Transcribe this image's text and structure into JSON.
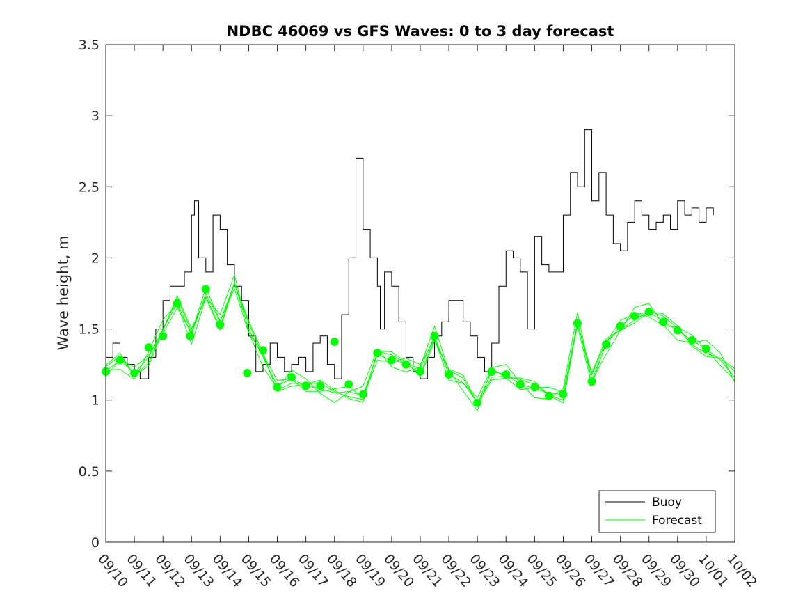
{
  "chart_data": {
    "type": "line",
    "title": "NDBC 46069 vs GFS Waves: 0 to 3 day forecast",
    "xlabel": "",
    "ylabel": "Wave height, m",
    "ylim": [
      0,
      3.5
    ],
    "xlim": [
      0,
      22
    ],
    "yticks": [
      "0",
      "0.5",
      "1",
      "1.5",
      "2",
      "2.5",
      "3",
      "3.5"
    ],
    "ytick_values": [
      0,
      0.5,
      1,
      1.5,
      2,
      2.5,
      3,
      3.5
    ],
    "xticks": [
      "09/10",
      "09/11",
      "09/12",
      "09/13",
      "09/14",
      "09/15",
      "09/16",
      "09/17",
      "09/18",
      "09/19",
      "09/20",
      "09/21",
      "09/22",
      "09/23",
      "09/24",
      "09/25",
      "09/26",
      "09/27",
      "09/28",
      "09/29",
      "09/30",
      "10/01",
      "10/02"
    ],
    "legend": {
      "position": "bottom-right",
      "entries": [
        "Buoy",
        "Forecast"
      ]
    },
    "colors": {
      "buoy": "#000000",
      "forecast": "#00ff00",
      "axes": "#262626"
    },
    "series": [
      {
        "name": "Buoy",
        "x": [
          0,
          0.25,
          0.5,
          0.75,
          1,
          1.2,
          1.5,
          1.75,
          2,
          2.25,
          2.5,
          2.75,
          3,
          3.1,
          3.25,
          3.5,
          3.75,
          4,
          4.25,
          4.5,
          4.75,
          5,
          5.25,
          5.5,
          5.75,
          6,
          6.25,
          6.5,
          6.75,
          7,
          7.25,
          7.5,
          7.75,
          8,
          8.25,
          8.5,
          8.75,
          9,
          9.25,
          9.5,
          9.6,
          9.75,
          10,
          10.25,
          10.5,
          10.75,
          11,
          11.25,
          11.5,
          11.75,
          12,
          12.25,
          12.5,
          12.75,
          13,
          13.25,
          13.5,
          13.75,
          14,
          14.25,
          14.5,
          14.75,
          15,
          15.25,
          15.5,
          15.75,
          16,
          16.25,
          16.5,
          16.75,
          17,
          17.25,
          17.5,
          17.75,
          18,
          18.25,
          18.5,
          18.75,
          19,
          19.25,
          19.5,
          19.75,
          20,
          20.25,
          20.5,
          20.75,
          21,
          21.25
        ],
        "values": [
          1.3,
          1.4,
          1.3,
          1.25,
          1.2,
          1.15,
          1.3,
          1.5,
          1.7,
          1.8,
          1.8,
          1.9,
          2.3,
          2.4,
          2.0,
          1.9,
          2.3,
          2.2,
          1.95,
          1.8,
          1.7,
          1.45,
          1.2,
          1.25,
          1.4,
          1.3,
          1.2,
          1.25,
          1.3,
          1.2,
          1.4,
          1.45,
          1.25,
          1.15,
          1.6,
          2.0,
          2.7,
          2.2,
          2.0,
          1.8,
          1.5,
          1.9,
          1.8,
          1.55,
          1.3,
          1.2,
          1.15,
          1.3,
          1.45,
          1.55,
          1.7,
          1.7,
          1.55,
          1.45,
          1.3,
          1.2,
          1.4,
          1.8,
          2.05,
          2.0,
          1.9,
          1.5,
          2.15,
          1.95,
          1.9,
          1.9,
          2.3,
          2.6,
          2.5,
          2.9,
          2.4,
          2.6,
          2.3,
          2.1,
          2.05,
          2.25,
          2.4,
          2.3,
          2.2,
          2.25,
          2.3,
          2.2,
          2.4,
          2.3,
          2.35,
          2.25,
          2.35,
          2.3
        ]
      },
      {
        "name": "Forecast",
        "x": [
          0,
          0.5,
          1,
          1.5,
          2,
          2.5,
          3,
          3.5,
          4,
          4.5,
          5,
          5.5,
          6,
          6.5,
          7,
          7.5,
          8,
          8.5,
          9,
          9.5,
          10,
          10.5,
          11,
          11.5,
          12,
          12.5,
          13,
          13.5,
          14,
          14.5,
          15,
          15.5,
          16,
          16.5,
          17,
          17.5,
          18,
          18.5,
          19,
          19.5,
          20,
          20.5,
          21,
          21.5,
          22
        ],
        "values": [
          1.2,
          1.28,
          1.19,
          1.3,
          1.5,
          1.68,
          1.46,
          1.75,
          1.55,
          1.82,
          1.5,
          1.3,
          1.1,
          1.15,
          1.1,
          1.08,
          1.05,
          1.06,
          1.03,
          1.32,
          1.28,
          1.26,
          1.22,
          1.45,
          1.18,
          1.12,
          0.98,
          1.2,
          1.18,
          1.11,
          1.08,
          1.05,
          1.04,
          1.55,
          1.14,
          1.39,
          1.52,
          1.6,
          1.62,
          1.55,
          1.49,
          1.42,
          1.36,
          1.28,
          1.16
        ]
      },
      {
        "name": "Forecast markers",
        "x": [
          0,
          0.5,
          1,
          1.5,
          2,
          2.5,
          2.95,
          3.5,
          4,
          4.95,
          5.5,
          6,
          6.5,
          7,
          7.5,
          8,
          8.5,
          9,
          9.5,
          10,
          10.5,
          11,
          11.5,
          12,
          13,
          13.5,
          14,
          14.5,
          15,
          15.5,
          16,
          16.5,
          17,
          17.5,
          18,
          18.5,
          19,
          19.5,
          20,
          20.5,
          21
        ],
        "values": [
          1.2,
          1.28,
          1.19,
          1.37,
          1.45,
          1.68,
          1.45,
          1.78,
          1.53,
          1.19,
          1.35,
          1.09,
          1.16,
          1.1,
          1.1,
          1.41,
          1.11,
          1.04,
          1.33,
          1.28,
          1.25,
          1.2,
          1.45,
          1.18,
          0.98,
          1.2,
          1.18,
          1.11,
          1.09,
          1.03,
          1.04,
          1.54,
          1.13,
          1.39,
          1.52,
          1.59,
          1.62,
          1.55,
          1.49,
          1.42,
          1.36
        ]
      }
    ]
  }
}
